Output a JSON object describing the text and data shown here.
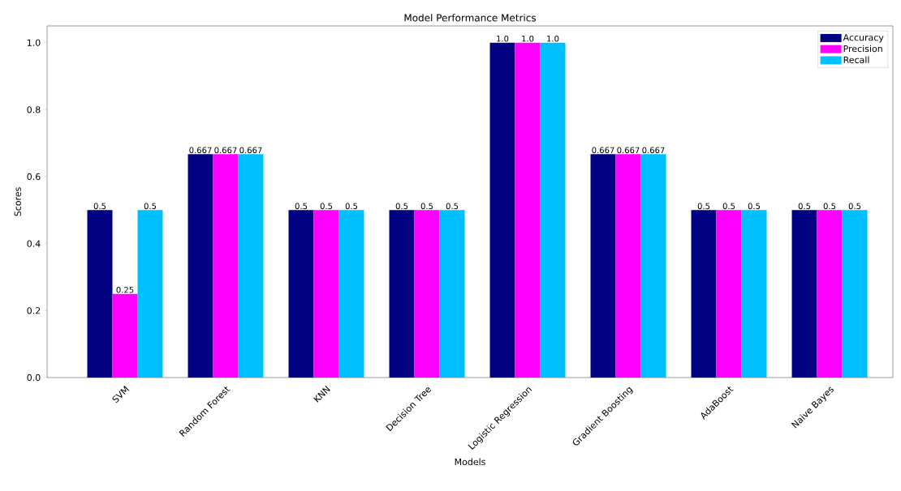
{
  "chart_data": {
    "type": "bar",
    "title": "Model Performance Metrics",
    "xlabel": "Models",
    "ylabel": "Scores",
    "categories": [
      "SVM",
      "Random Forest",
      "KNN",
      "Decision Tree",
      "Logistic Regression",
      "Gradient Boosting",
      "AdaBoost",
      "Naive Bayes"
    ],
    "series": [
      {
        "name": "Accuracy",
        "color": "#000080",
        "values": [
          0.5,
          0.667,
          0.5,
          0.5,
          1.0,
          0.667,
          0.5,
          0.5
        ],
        "value_labels": [
          "0.5",
          "0.667",
          "0.5",
          "0.5",
          "1.0",
          "0.667",
          "0.5",
          "0.5"
        ]
      },
      {
        "name": "Precision",
        "color": "#ff00ff",
        "values": [
          0.25,
          0.667,
          0.5,
          0.5,
          1.0,
          0.667,
          0.5,
          0.5
        ],
        "value_labels": [
          "0.25",
          "0.667",
          "0.5",
          "0.5",
          "1.0",
          "0.667",
          "0.5",
          "0.5"
        ]
      },
      {
        "name": "Recall",
        "color": "#00bfff",
        "values": [
          0.5,
          0.667,
          0.5,
          0.5,
          1.0,
          0.667,
          0.5,
          0.5
        ],
        "value_labels": [
          "0.5",
          "0.667",
          "0.5",
          "0.5",
          "1.0",
          "0.667",
          "0.5",
          "0.5"
        ]
      }
    ],
    "ylim": [
      0,
      1.05
    ],
    "yticks": [
      {
        "value": 0,
        "label": "0.0"
      },
      0.2,
      0.4,
      0.6,
      0.8,
      {
        "value": 1,
        "label": "1.0"
      }
    ],
    "legend": "top right",
    "grid": false
  }
}
